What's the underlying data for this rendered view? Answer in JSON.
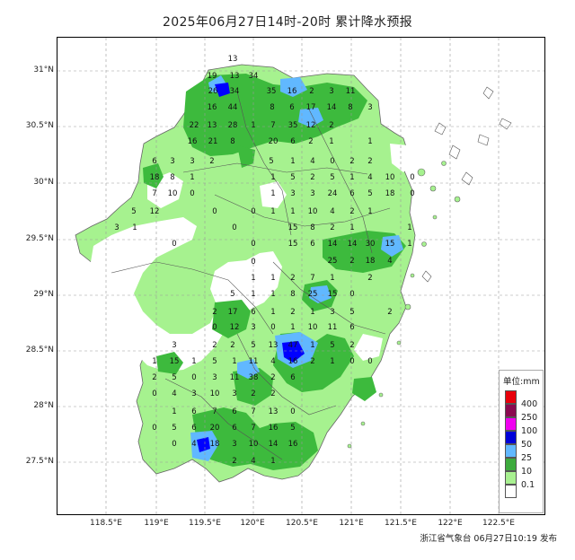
{
  "title": "2025年06月27日14时-20时 累计降水预报",
  "footer": "浙江省气象台 06月27日10:19 发布",
  "axes": {
    "lat_labels": [
      "31°N",
      "30.5°N",
      "30°N",
      "29.5°N",
      "29°N",
      "28.5°N",
      "28°N",
      "27.5°N"
    ],
    "lon_labels": [
      "118.5°E",
      "119°E",
      "119.5°E",
      "120°E",
      "120.5°E",
      "121°E",
      "121.5°E",
      "122°E",
      "122.5°E"
    ]
  },
  "legend": {
    "title": "单位:mm",
    "levels": [
      {
        "label": "400",
        "color": "#e8000b"
      },
      {
        "label": "250",
        "color": "#8b0a50"
      },
      {
        "label": "100",
        "color": "#f000f0"
      },
      {
        "label": "50",
        "color": "#0000d8"
      },
      {
        "label": "25",
        "color": "#62b8ff"
      },
      {
        "label": "10",
        "color": "#3daa3d"
      },
      {
        "label": "0.1",
        "color": "#a8f090"
      }
    ],
    "bottom_color": "#ffffff"
  },
  "colors": {
    "light_green": "#a6f28f",
    "green": "#3dba3d",
    "light_blue": "#61b8ff",
    "blue": "#0000ff",
    "grid": "#999999",
    "boundary": "#666666"
  },
  "station_values": [
    "13",
    "19",
    "13",
    "34",
    "26",
    "34",
    "35",
    "16",
    "2",
    "3",
    "11",
    "16",
    "44",
    "8",
    "6",
    "17",
    "14",
    "8",
    "3",
    "22",
    "13",
    "28",
    "1",
    "7",
    "35",
    "12",
    "2",
    "16",
    "21",
    "8",
    "20",
    "6",
    "2",
    "1",
    "1",
    "6",
    "3",
    "3",
    "2",
    "5",
    "1",
    "4",
    "0",
    "2",
    "2",
    "18",
    "8",
    "1",
    "1",
    "5",
    "2",
    "5",
    "1",
    "4",
    "10",
    "0",
    "7",
    "10",
    "0",
    "1",
    "3",
    "3",
    "24",
    "6",
    "5",
    "18",
    "0",
    "5",
    "12",
    "0",
    "0",
    "1",
    "1",
    "10",
    "4",
    "2",
    "1",
    "3",
    "1",
    "0",
    "15",
    "8",
    "2",
    "1",
    "1",
    "0",
    "0",
    "15",
    "6",
    "14",
    "14",
    "30",
    "15",
    "1",
    "25",
    "2",
    "18",
    "4",
    "0",
    "1",
    "1",
    "2",
    "7",
    "1",
    "2",
    "5",
    "1",
    "1",
    "8",
    "25",
    "15",
    "0",
    "2",
    "17",
    "6",
    "1",
    "2",
    "1",
    "3",
    "5",
    "2",
    "0",
    "12",
    "3",
    "0",
    "1",
    "10",
    "11",
    "6",
    "3",
    "2",
    "2",
    "5",
    "13",
    "47",
    "1",
    "5",
    "2",
    "1",
    "15",
    "1",
    "5",
    "1",
    "11",
    "4",
    "16",
    "2",
    "1",
    "0",
    "0",
    "2",
    "5",
    "0",
    "3",
    "11",
    "38",
    "2",
    "6",
    "0",
    "4",
    "3",
    "10",
    "3",
    "2",
    "2",
    "1",
    "6",
    "7",
    "6",
    "7",
    "13",
    "0",
    "0",
    "5",
    "6",
    "20",
    "6",
    "7",
    "16",
    "5",
    "0",
    "4",
    "18",
    "3",
    "10",
    "14",
    "16",
    "2",
    "4",
    "1"
  ]
}
